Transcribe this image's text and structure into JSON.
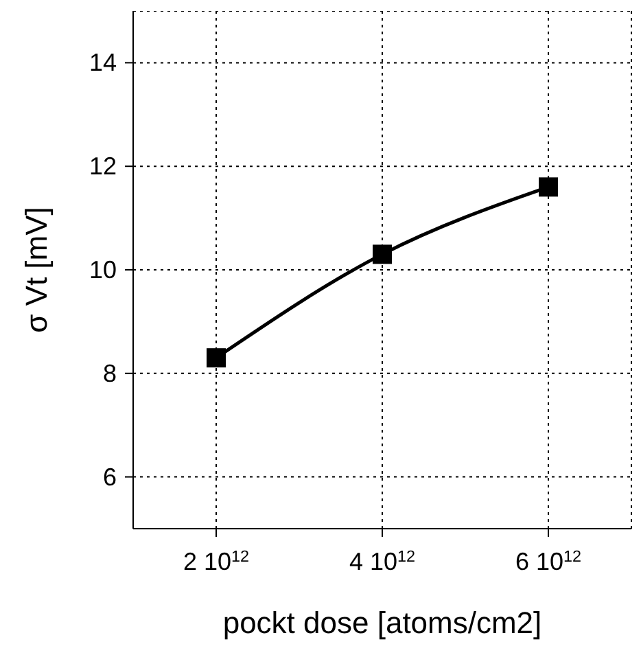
{
  "chart_data": {
    "type": "line",
    "xlabel": "pockt dose [atoms/cm2]",
    "ylabel": "σ Vt [mV]",
    "categories": [
      "2 10$^{12}$",
      "4 10$^{12}$",
      "6 10$^{12}$"
    ],
    "series": [
      {
        "color": "#000000",
        "values": [
          8.3,
          10.3,
          11.6
        ]
      }
    ],
    "ylim": [
      5,
      15
    ],
    "yticks": [
      6,
      8,
      10,
      12,
      14
    ],
    "grid": true,
    "marker": "square",
    "line_style": "solid"
  }
}
